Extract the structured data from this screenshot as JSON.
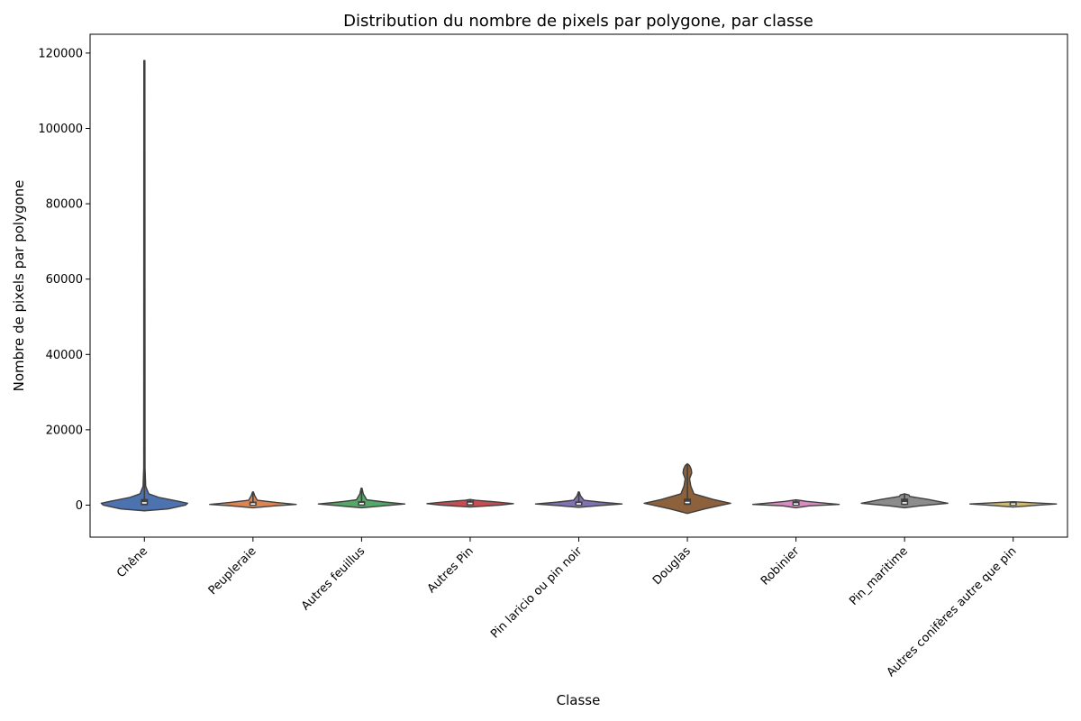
{
  "chart_data": {
    "type": "violin",
    "title": "Distribution du nombre de pixels par polygone, par classe",
    "xlabel": "Classe",
    "ylabel": "Nombre de pixels par polygone",
    "ylim": [
      -8500,
      125000
    ],
    "yticks": [
      0,
      20000,
      40000,
      60000,
      80000,
      100000,
      120000
    ],
    "grid": false,
    "categories": [
      "Chêne",
      "Peupleraie",
      "Autres feuillus",
      "Autres Pin",
      "Pin laricio ou pin noir",
      "Douglas",
      "Robinier",
      "Pin_maritime",
      "Autres conifères autre que pin"
    ],
    "series": [
      {
        "category": "Chêne",
        "color": "#4c72b0",
        "min": 0,
        "q1": 200,
        "median": 600,
        "q3": 1400,
        "max": 118000,
        "density": [
          [
            -1500,
            0.0
          ],
          [
            -1000,
            0.55
          ],
          [
            0,
            0.95
          ],
          [
            500,
            1.0
          ],
          [
            1000,
            0.8
          ],
          [
            2000,
            0.35
          ],
          [
            3000,
            0.1
          ],
          [
            5000,
            0.03
          ],
          [
            10000,
            0.015
          ],
          [
            118000,
            0.012
          ]
        ]
      },
      {
        "category": "Peupleraie",
        "color": "#dd8452",
        "min": 0,
        "q1": 100,
        "median": 300,
        "q3": 700,
        "max": 3500,
        "density": [
          [
            -700,
            0.0
          ],
          [
            -200,
            0.5
          ],
          [
            200,
            1.0
          ],
          [
            700,
            0.55
          ],
          [
            1300,
            0.1
          ],
          [
            2500,
            0.04
          ],
          [
            3500,
            0.01
          ]
        ]
      },
      {
        "category": "Autres feuillus",
        "color": "#55a868",
        "min": 0,
        "q1": 150,
        "median": 400,
        "q3": 800,
        "max": 4500,
        "density": [
          [
            -700,
            0.0
          ],
          [
            -200,
            0.5
          ],
          [
            300,
            1.0
          ],
          [
            800,
            0.55
          ],
          [
            1400,
            0.12
          ],
          [
            3000,
            0.04
          ],
          [
            4500,
            0.01
          ]
        ]
      },
      {
        "category": "Autres Pin",
        "color": "#c44e52",
        "min": 0,
        "q1": 200,
        "median": 450,
        "q3": 900,
        "max": 1300,
        "density": [
          [
            -500,
            0.0
          ],
          [
            0,
            0.7
          ],
          [
            400,
            1.0
          ],
          [
            900,
            0.55
          ],
          [
            1300,
            0.12
          ],
          [
            1500,
            0.0
          ]
        ]
      },
      {
        "category": "Pin laricio ou pin noir",
        "color": "#8172b3",
        "min": 0,
        "q1": 150,
        "median": 350,
        "q3": 750,
        "max": 3500,
        "density": [
          [
            -600,
            0.0
          ],
          [
            -100,
            0.5
          ],
          [
            300,
            1.0
          ],
          [
            800,
            0.5
          ],
          [
            1300,
            0.12
          ],
          [
            2500,
            0.04
          ],
          [
            3500,
            0.01
          ]
        ]
      },
      {
        "category": "Douglas",
        "color": "#8c613c",
        "min": 0,
        "q1": 300,
        "median": 700,
        "q3": 1500,
        "max": 11000,
        "density": [
          [
            -2200,
            0.0
          ],
          [
            -1000,
            0.4
          ],
          [
            0,
            0.8
          ],
          [
            500,
            1.0
          ],
          [
            1500,
            0.6
          ],
          [
            3000,
            0.15
          ],
          [
            5000,
            0.08
          ],
          [
            7000,
            0.05
          ],
          [
            8500,
            0.1
          ],
          [
            9500,
            0.09
          ],
          [
            10500,
            0.05
          ],
          [
            11000,
            0.0
          ]
        ]
      },
      {
        "category": "Robinier",
        "color": "#da8bc3",
        "min": 0,
        "q1": 100,
        "median": 300,
        "q3": 800,
        "max": 1300,
        "density": [
          [
            -700,
            0.0
          ],
          [
            -200,
            0.3
          ],
          [
            200,
            1.0
          ],
          [
            600,
            0.6
          ],
          [
            1000,
            0.25
          ],
          [
            1400,
            0.0
          ]
        ]
      },
      {
        "category": "Pin_maritime",
        "color": "#8c8c8c",
        "min": 0,
        "q1": 300,
        "median": 600,
        "q3": 1500,
        "max": 3000,
        "density": [
          [
            -700,
            0.0
          ],
          [
            -200,
            0.35
          ],
          [
            500,
            1.0
          ],
          [
            1500,
            0.55
          ],
          [
            2300,
            0.12
          ],
          [
            2700,
            0.1
          ],
          [
            3000,
            0.0
          ]
        ]
      },
      {
        "category": "Autres conifères autre que pin",
        "color": "#ccb974",
        "min": 0,
        "q1": 150,
        "median": 300,
        "q3": 500,
        "max": 700,
        "density": [
          [
            -500,
            0.0
          ],
          [
            0,
            0.6
          ],
          [
            300,
            1.0
          ],
          [
            600,
            0.5
          ],
          [
            900,
            0.0
          ]
        ]
      }
    ]
  }
}
